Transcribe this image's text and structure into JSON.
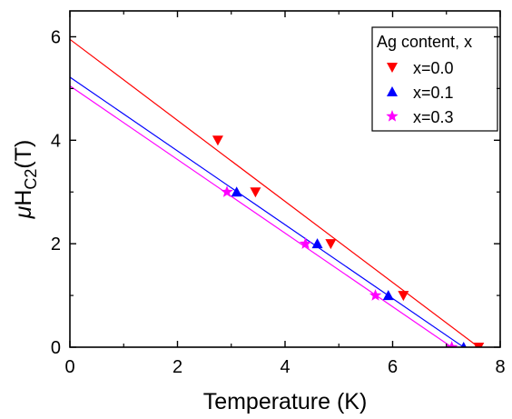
{
  "chart_data": {
    "type": "scatter",
    "xlabel": "Temperature (K)",
    "ylabel": {
      "mu": "μ",
      "main": "H",
      "sub": "C2",
      "unit": "(T)"
    },
    "xlim": [
      0,
      8
    ],
    "ylim": [
      0,
      6.5
    ],
    "xticks": [
      0,
      2,
      4,
      6,
      8
    ],
    "yticks": [
      0,
      2,
      4,
      6
    ],
    "grid": false,
    "legend": {
      "title": "Ag content, x",
      "placement": "top-right"
    },
    "series": [
      {
        "name": "x=0.0",
        "color": "#ff0000",
        "marker": "triangle-down",
        "points": [
          {
            "x": 2.75,
            "y": 4.0
          },
          {
            "x": 3.45,
            "y": 3.0
          },
          {
            "x": 4.85,
            "y": 2.0
          },
          {
            "x": 6.2,
            "y": 1.0
          },
          {
            "x": 7.6,
            "y": 0.0
          }
        ],
        "fit": {
          "x1": 0,
          "y1": 5.95,
          "x2": 7.6,
          "y2": 0
        }
      },
      {
        "name": "x=0.1",
        "color": "#0000ff",
        "marker": "triangle-up",
        "points": [
          {
            "x": 3.1,
            "y": 3.0
          },
          {
            "x": 4.6,
            "y": 2.0
          },
          {
            "x": 5.92,
            "y": 1.0
          },
          {
            "x": 7.32,
            "y": 0.0
          }
        ],
        "fit": {
          "x1": 0,
          "y1": 5.22,
          "x2": 7.32,
          "y2": 0
        }
      },
      {
        "name": "x=0.3",
        "color": "#ff00ff",
        "marker": "star",
        "points": [
          {
            "x": 2.92,
            "y": 3.0
          },
          {
            "x": 4.38,
            "y": 2.0
          },
          {
            "x": 5.68,
            "y": 1.0
          },
          {
            "x": 7.1,
            "y": 0.0
          }
        ],
        "fit": {
          "x1": 0,
          "y1": 5.05,
          "x2": 7.1,
          "y2": 0
        }
      }
    ]
  }
}
